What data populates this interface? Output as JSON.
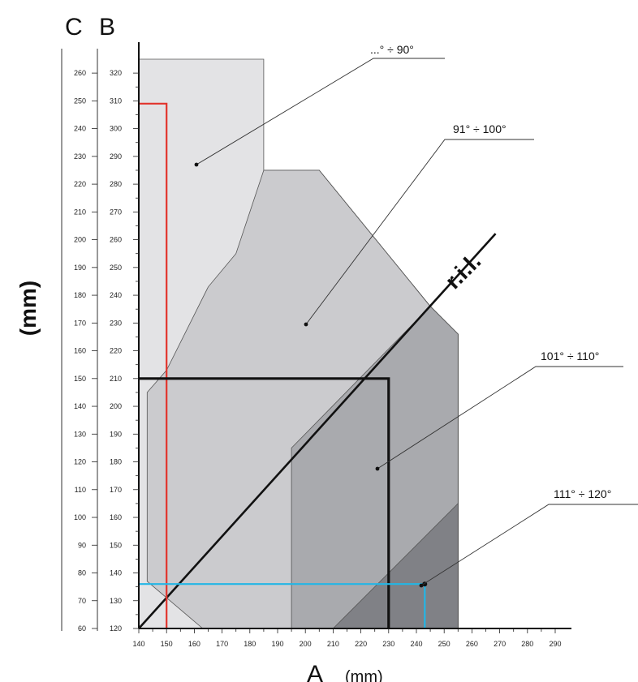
{
  "chart_data": {
    "type": "area",
    "title": "",
    "xlabel": "A",
    "xunit": "(mm)",
    "ylabel": "(mm)",
    "scale_b_title": "B",
    "scale_c_title": "C",
    "xlim": [
      140,
      290
    ],
    "x_ticks": [
      140,
      150,
      160,
      170,
      180,
      190,
      200,
      210,
      220,
      230,
      240,
      250,
      260,
      270,
      280,
      290
    ],
    "b_ylim": [
      120,
      325
    ],
    "b_ticks": [
      120,
      130,
      140,
      150,
      160,
      170,
      180,
      190,
      200,
      210,
      220,
      230,
      240,
      250,
      260,
      270,
      280,
      290,
      300,
      310,
      320
    ],
    "c_ticks": [
      60,
      70,
      80,
      90,
      100,
      110,
      120,
      130,
      140,
      150,
      160,
      170,
      180,
      190,
      200,
      210,
      220,
      230,
      240,
      250,
      260
    ],
    "c_offset_vs_b": -60,
    "zones": [
      {
        "label": "...° ÷ 90°",
        "color": "#e3e3e5",
        "polygon": [
          [
            140,
            120
          ],
          [
            163,
            120
          ],
          [
            143,
            137
          ],
          [
            143,
            205
          ],
          [
            150,
            213
          ],
          [
            165,
            243
          ],
          [
            175,
            255
          ],
          [
            185,
            285
          ],
          [
            205,
            285
          ],
          [
            245,
            236
          ],
          [
            230,
            211
          ],
          [
            230,
            120
          ],
          [
            250,
            120
          ],
          [
            290,
            120
          ],
          [
            290,
            120
          ],
          [
            163,
            120
          ]
        ],
        "outline": [
          [
            140,
            120
          ],
          [
            140,
            325
          ],
          [
            185,
            325
          ],
          [
            185,
            285
          ]
        ]
      },
      {
        "label": "91° ÷ 100°",
        "color": "#cbcbce",
        "polygon": [
          [
            163,
            120
          ],
          [
            143,
            137
          ],
          [
            143,
            205
          ],
          [
            150,
            213
          ],
          [
            165,
            243
          ],
          [
            175,
            255
          ],
          [
            185,
            285
          ],
          [
            195,
            285
          ],
          [
            205,
            285
          ],
          [
            245,
            236
          ],
          [
            255,
            226
          ],
          [
            255,
            120
          ]
        ]
      },
      {
        "label": "101° ÷ 110°",
        "color": "#a9aaae",
        "polygon": [
          [
            195,
            120
          ],
          [
            195,
            185
          ],
          [
            245,
            236
          ],
          [
            255,
            226
          ],
          [
            255,
            120
          ]
        ]
      },
      {
        "label": "111° ÷ 120°",
        "color": "#808186",
        "polygon": [
          [
            210,
            120
          ],
          [
            255,
            165
          ],
          [
            255,
            120
          ]
        ]
      }
    ],
    "reference_line": {
      "label": "r.i.l.",
      "x": [
        140,
        258
      ],
      "y": [
        120,
        240
      ]
    },
    "examples": [
      {
        "color": "#e2342c",
        "path": [
          [
            140,
            309
          ],
          [
            150,
            309
          ],
          [
            150,
            120
          ]
        ]
      },
      {
        "color": "#111111",
        "path": [
          [
            140,
            210
          ],
          [
            230,
            210
          ],
          [
            230,
            120
          ]
        ]
      },
      {
        "color": "#23b6e6",
        "path": [
          [
            140,
            136
          ],
          [
            243,
            136
          ],
          [
            243,
            120
          ]
        ]
      }
    ]
  }
}
